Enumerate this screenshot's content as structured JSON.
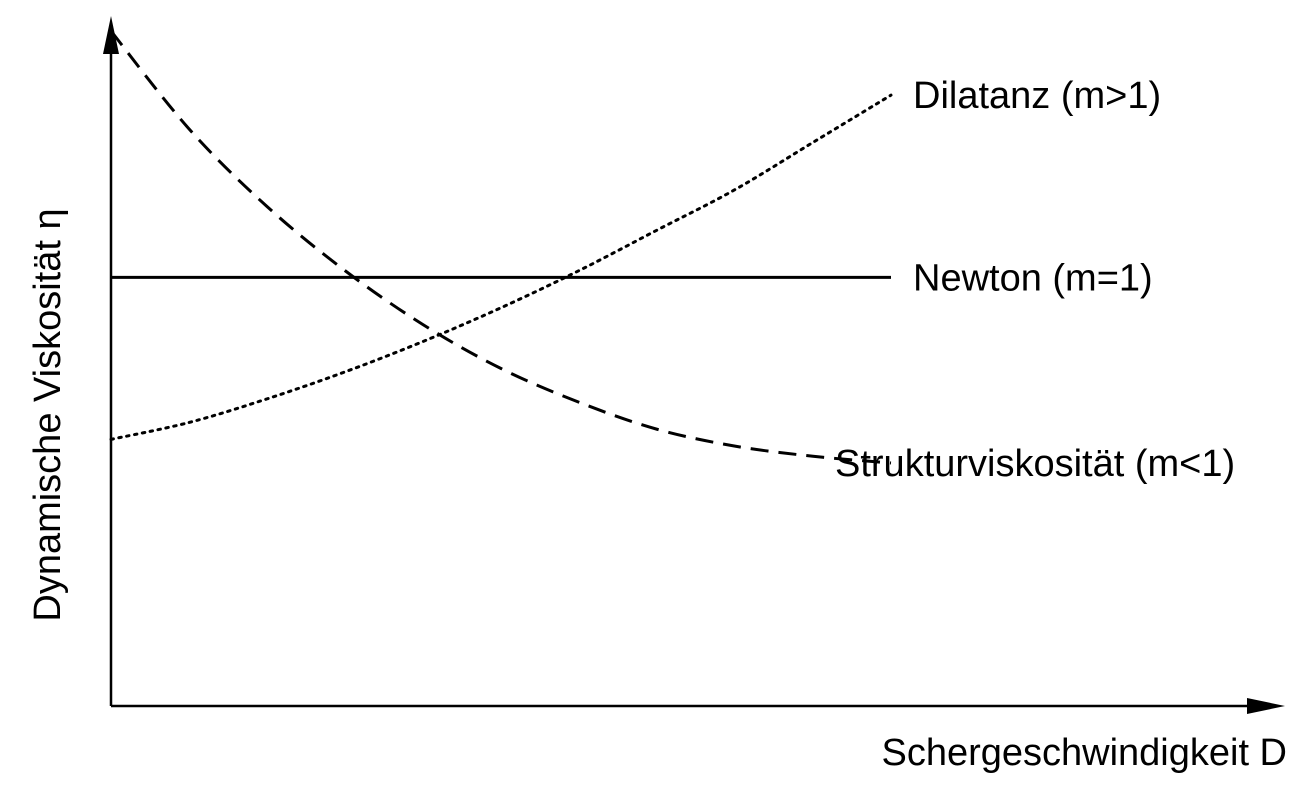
{
  "chart_data": {
    "type": "line",
    "title": "",
    "xlabel": "Schergeschwindigkeit D",
    "ylabel": "Dynamische Viskosität η",
    "x": [
      0,
      0.1,
      0.2,
      0.3,
      0.4,
      0.5,
      0.6,
      0.7,
      0.8,
      0.9,
      1.0
    ],
    "xlim": [
      0,
      1.5
    ],
    "ylim": [
      0,
      1
    ],
    "grid": false,
    "legend": "none",
    "series": [
      {
        "name": "Dilatanz (m>1)",
        "style": "dotted",
        "label_x": 1.0,
        "values": [
          0.395,
          0.42,
          0.455,
          0.495,
          0.54,
          0.59,
          0.645,
          0.705,
          0.765,
          0.835,
          0.905
        ]
      },
      {
        "name": "Newton (m=1)",
        "style": "solid",
        "label_x": 1.0,
        "values": [
          0.635,
          0.635,
          0.635,
          0.635,
          0.635,
          0.635,
          0.635,
          0.635,
          0.635,
          0.635,
          0.635
        ]
      },
      {
        "name": "Strukturviskosität (m<1)",
        "style": "dashed",
        "label_x": 0.9,
        "values": [
          1.0,
          0.855,
          0.74,
          0.645,
          0.565,
          0.5,
          0.45,
          0.41,
          0.385,
          0.37,
          0.36
        ]
      }
    ],
    "colors": {
      "line": "#000000",
      "axis": "#000000"
    }
  }
}
